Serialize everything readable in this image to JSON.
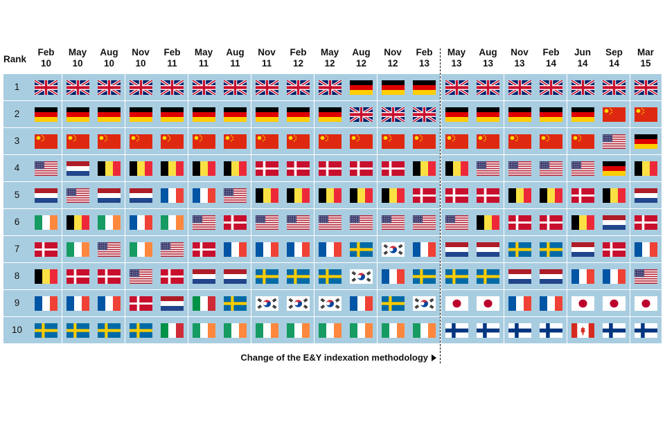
{
  "chart_data": {
    "type": "table",
    "rank_header": "Rank",
    "columns": [
      "Feb 10",
      "May 10",
      "Aug 10",
      "Nov 10",
      "Feb 11",
      "May 11",
      "Aug 11",
      "Nov 11",
      "Feb 12",
      "May 12",
      "Aug 12",
      "Nov 12",
      "Feb 13",
      "May 13",
      "Aug 13",
      "Nov 13",
      "Feb 14",
      "Jun 14",
      "Sep 14",
      "Mar 15"
    ],
    "ranks": [
      "1",
      "2",
      "3",
      "4",
      "5",
      "6",
      "7",
      "8",
      "9",
      "10"
    ],
    "grid": [
      [
        "uk",
        "uk",
        "uk",
        "uk",
        "uk",
        "uk",
        "uk",
        "uk",
        "uk",
        "uk",
        "germany",
        "germany",
        "germany",
        "uk",
        "uk",
        "uk",
        "uk",
        "uk",
        "uk",
        "uk"
      ],
      [
        "germany",
        "germany",
        "germany",
        "germany",
        "germany",
        "germany",
        "germany",
        "germany",
        "germany",
        "germany",
        "uk",
        "uk",
        "uk",
        "germany",
        "germany",
        "germany",
        "germany",
        "germany",
        "china",
        "china"
      ],
      [
        "china",
        "china",
        "china",
        "china",
        "china",
        "china",
        "china",
        "china",
        "china",
        "china",
        "china",
        "china",
        "china",
        "china",
        "china",
        "china",
        "china",
        "china",
        "usa",
        "germany"
      ],
      [
        "usa",
        "netherlands",
        "belgium",
        "belgium",
        "belgium",
        "belgium",
        "belgium",
        "denmark",
        "denmark",
        "denmark",
        "denmark",
        "denmark",
        "belgium",
        "belgium",
        "usa",
        "usa",
        "usa",
        "usa",
        "germany",
        "belgium"
      ],
      [
        "netherlands",
        "usa",
        "netherlands",
        "netherlands",
        "france",
        "france",
        "usa",
        "belgium",
        "belgium",
        "belgium",
        "belgium",
        "belgium",
        "denmark",
        "denmark",
        "denmark",
        "belgium",
        "belgium",
        "denmark",
        "belgium",
        "netherlands"
      ],
      [
        "ireland",
        "belgium",
        "ireland",
        "france",
        "ireland",
        "usa",
        "denmark",
        "usa",
        "usa",
        "usa",
        "usa",
        "usa",
        "usa",
        "usa",
        "belgium",
        "denmark",
        "denmark",
        "belgium",
        "netherlands",
        "denmark"
      ],
      [
        "denmark",
        "ireland",
        "usa",
        "ireland",
        "usa",
        "denmark",
        "france",
        "france",
        "france",
        "france",
        "sweden",
        "south-korea",
        "france",
        "netherlands",
        "netherlands",
        "sweden",
        "sweden",
        "netherlands",
        "denmark",
        "france"
      ],
      [
        "belgium",
        "denmark",
        "denmark",
        "usa",
        "denmark",
        "netherlands",
        "netherlands",
        "sweden",
        "sweden",
        "sweden",
        "south-korea",
        "france",
        "sweden",
        "sweden",
        "sweden",
        "netherlands",
        "netherlands",
        "france",
        "france",
        "usa"
      ],
      [
        "france",
        "france",
        "france",
        "denmark",
        "netherlands",
        "italy",
        "sweden",
        "south-korea",
        "south-korea",
        "south-korea",
        "france",
        "sweden",
        "south-korea",
        "japan",
        "japan",
        "france",
        "france",
        "japan",
        "japan",
        "japan"
      ],
      [
        "sweden",
        "sweden",
        "sweden",
        "sweden",
        "italy",
        "ireland",
        "ireland",
        "ireland",
        "ireland",
        "ireland",
        "ireland",
        "ireland",
        "ireland",
        "finland",
        "finland",
        "finland",
        "finland",
        "canada",
        "finland",
        "finland"
      ]
    ],
    "annotation": "Change of the E&Y indexation methodology",
    "annotation_after_column": "Feb 13"
  }
}
